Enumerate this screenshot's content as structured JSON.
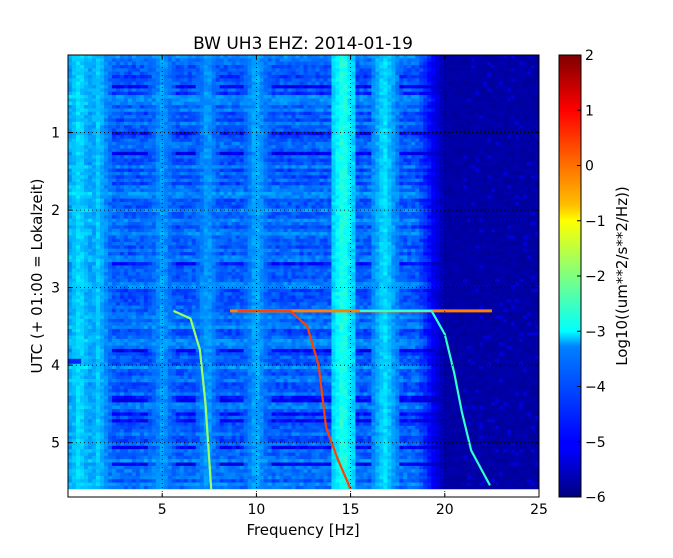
{
  "chart_data": {
    "type": "heatmap",
    "title": "BW UH3 EHZ: 2014-01-19",
    "xlabel": "Frequency [Hz]",
    "ylabel": "UTC (+ 01:00 = Lokalzeit)",
    "xlim": [
      0,
      25
    ],
    "ylim": [
      5.7,
      0
    ],
    "x_ticks": [
      5,
      10,
      15,
      20,
      25
    ],
    "x_tick_labels": [
      "5",
      "10",
      "15",
      "20",
      "25"
    ],
    "y_ticks": [
      1,
      2,
      3,
      4,
      5
    ],
    "y_tick_labels": [
      "1",
      "2",
      "3",
      "4",
      "5"
    ],
    "grid": true,
    "colormap": "jet",
    "colorbar": {
      "label": "Log10((um**2/s**2/Hz))",
      "range": [
        -6,
        2
      ],
      "ticks": [
        2,
        1,
        0,
        -1,
        -2,
        -3,
        -4,
        -5,
        -6
      ],
      "tick_labels": [
        "2",
        "1",
        "0",
        "−1",
        "−2",
        "−3",
        "−4",
        "−5",
        "−6"
      ]
    },
    "data_end_hour": 5.6,
    "background_level": -4.2,
    "high_freq_floor_level": -5.7,
    "floor_start_hz": 18.5,
    "persistent_bands_hz": [
      {
        "freq": 0.6,
        "level": -3.2
      },
      {
        "freq": 1.6,
        "level": -3.4
      },
      {
        "freq": 5.0,
        "level": -3.7
      },
      {
        "freq": 7.4,
        "level": -3.7
      },
      {
        "freq": 10.0,
        "level": -3.6
      },
      {
        "freq": 14.6,
        "level": -2.7
      },
      {
        "freq": 16.8,
        "level": -3.2
      }
    ],
    "sweep_curves": [
      {
        "level": -1.8,
        "points": [
          [
            5.6,
            3.3
          ],
          [
            6.5,
            3.4
          ],
          [
            7.0,
            3.8
          ],
          [
            7.3,
            4.5
          ],
          [
            7.6,
            5.6
          ]
        ]
      },
      {
        "level": 0.5,
        "points": [
          [
            9.0,
            3.3
          ],
          [
            11.8,
            3.3
          ],
          [
            12.7,
            3.5
          ],
          [
            13.3,
            4.0
          ],
          [
            13.7,
            4.8
          ],
          [
            14.3,
            5.2
          ],
          [
            15.0,
            5.6
          ]
        ]
      },
      {
        "level": -2.6,
        "points": [
          [
            15.5,
            3.3
          ],
          [
            19.3,
            3.3
          ],
          [
            20.0,
            3.6
          ],
          [
            20.5,
            4.1
          ],
          [
            20.9,
            4.6
          ],
          [
            21.4,
            5.1
          ],
          [
            22.4,
            5.55
          ]
        ]
      }
    ],
    "horizontal_trace": {
      "hour": 3.3,
      "from_hz": 8.6,
      "to_hz": 22.5,
      "level": 0.0
    },
    "short_bar": {
      "hour": 3.95,
      "from_hz": 0,
      "to_hz": 0.7,
      "level": -4.7
    }
  }
}
